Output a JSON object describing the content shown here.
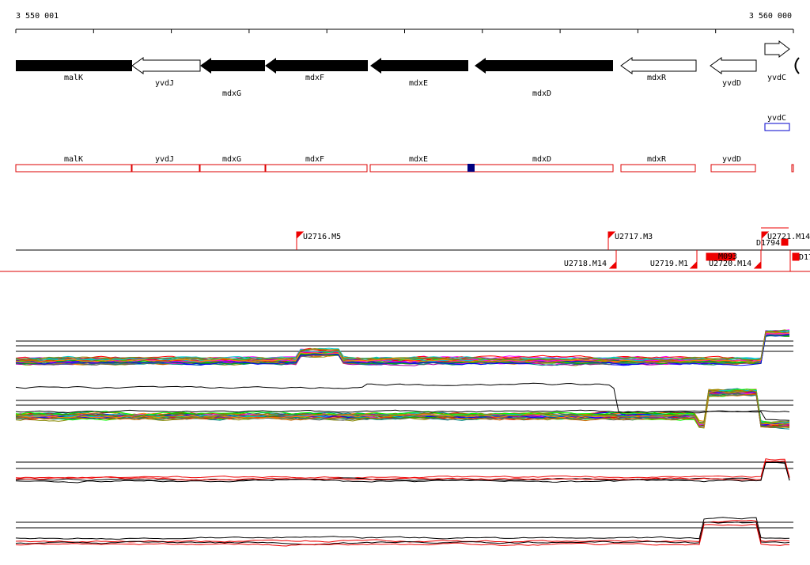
{
  "ruler": {
    "start": "3 550 001",
    "end": "3 560 000"
  },
  "genes": [
    "malK",
    "yvdJ",
    "mdxG",
    "mdxF",
    "mdxE",
    "mdxD",
    "mdxR",
    "yvdD",
    "yvdC"
  ],
  "upper_track": {
    "label": "yvdC"
  },
  "transcripts": [
    "malK",
    "yvdJ",
    "mdxG",
    "mdxF",
    "mdxE",
    "mdxD",
    "mdxR",
    "yvdD"
  ],
  "features": [
    "U2716.M5",
    "U2717.M3",
    "U2721.M14",
    "D1794",
    "U2718.M14",
    "U2719.M1",
    "U2720.M14",
    "M093",
    "D17"
  ]
}
